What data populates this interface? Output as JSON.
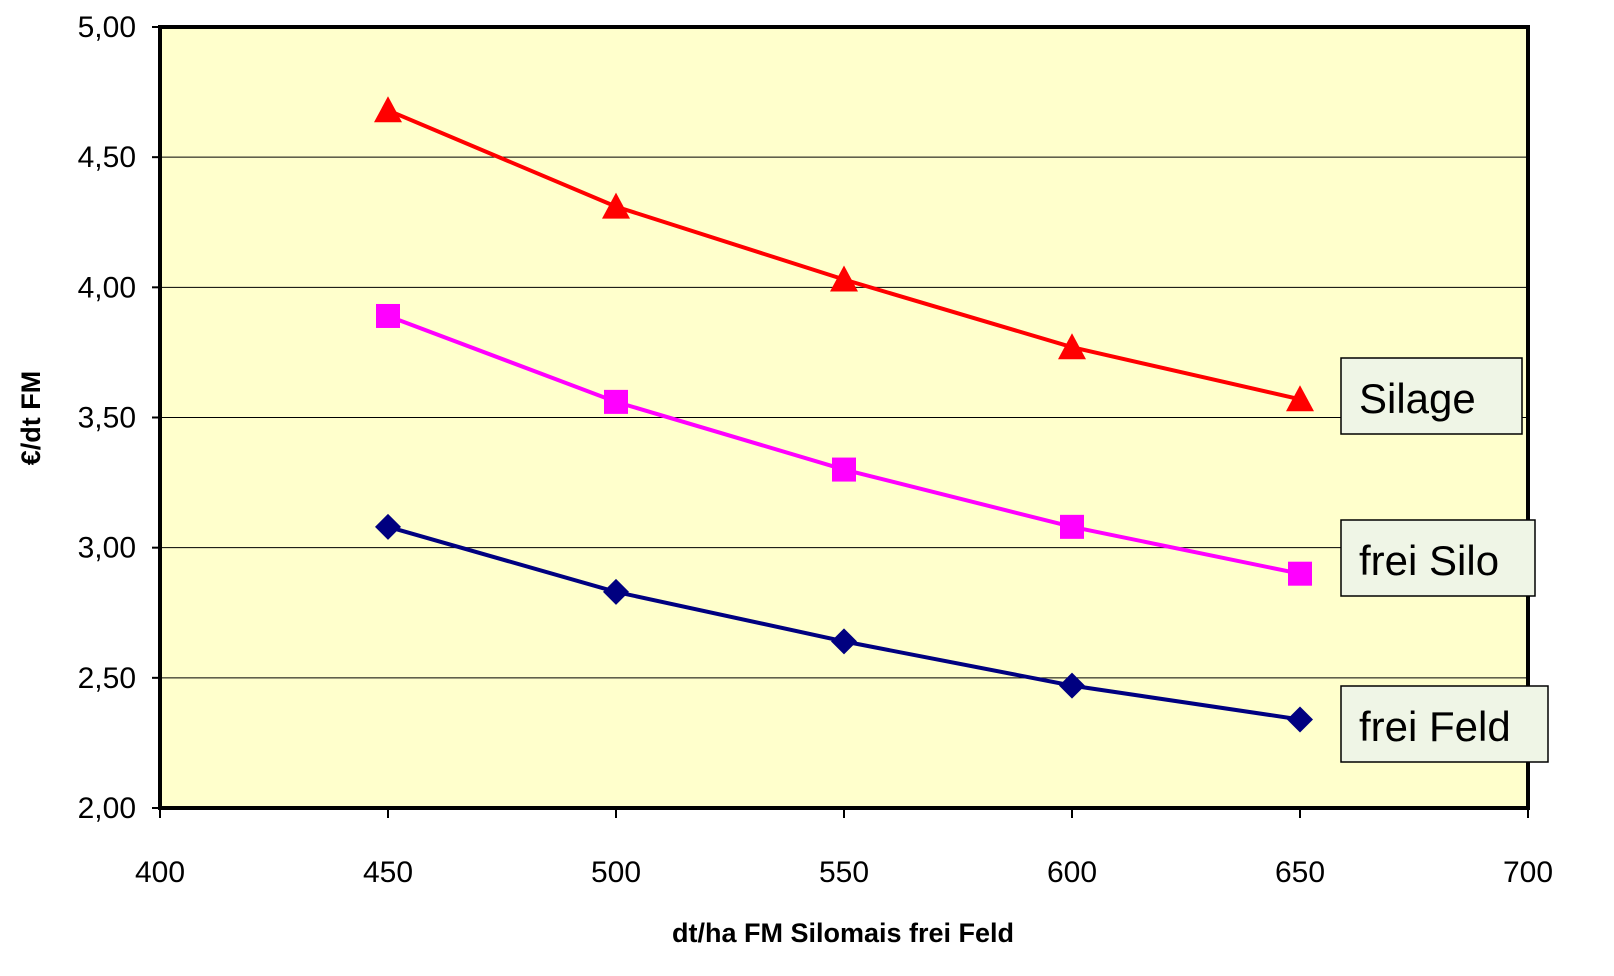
{
  "chart_data": {
    "type": "line",
    "xlabel": "dt/ha FM Silomais frei Feld",
    "ylabel": "€/dt FM",
    "xlim": [
      400,
      700
    ],
    "ylim": [
      2.0,
      5.0
    ],
    "x_ticks": [
      400,
      450,
      500,
      550,
      600,
      650,
      700
    ],
    "x_tick_labels": [
      "400",
      "450",
      "500",
      "550",
      "600",
      "650",
      "700"
    ],
    "y_ticks": [
      2.0,
      2.5,
      3.0,
      3.5,
      4.0,
      4.5,
      5.0
    ],
    "y_tick_labels": [
      "2,00",
      "2,50",
      "3,00",
      "3,50",
      "4,00",
      "4,50",
      "5,00"
    ],
    "grid": "horizontal",
    "plot_background": "#FFFFCC",
    "legend": "labels at right end of each line",
    "x": [
      450,
      500,
      550,
      600,
      650
    ],
    "series": [
      {
        "name": "Silage",
        "values": [
          4.68,
          4.31,
          4.03,
          3.77,
          3.57
        ],
        "color": "#FF0000",
        "marker": "triangle"
      },
      {
        "name": "frei Silo",
        "values": [
          3.89,
          3.56,
          3.3,
          3.08,
          2.9
        ],
        "color": "#FF00FF",
        "marker": "square"
      },
      {
        "name": "frei Feld",
        "values": [
          3.08,
          2.83,
          2.64,
          2.47,
          2.34
        ],
        "color": "#000080",
        "marker": "diamond"
      }
    ]
  }
}
